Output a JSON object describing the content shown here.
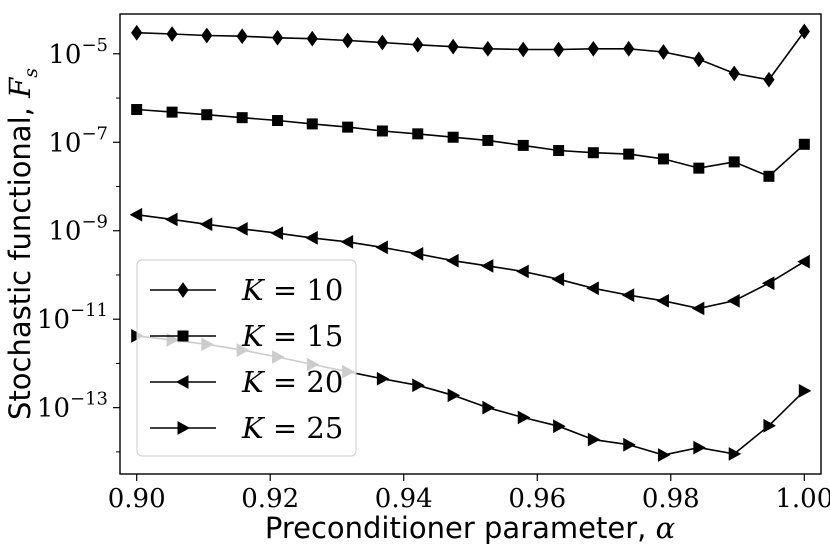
{
  "chart_data": {
    "type": "line",
    "xlabel": "Preconditioner parameter, α",
    "ylabel": "Stochastic functional, F_s",
    "ylabel_main": "Stochastic functional, ",
    "ylabel_symbol": "F",
    "ylabel_subscript": "s",
    "xlabel_main": "Preconditioner parameter, ",
    "xlabel_symbol": "α",
    "y_scale": "log",
    "xlim": [
      0.8975,
      1.0025
    ],
    "ylim_log10": [
      -14.5,
      -4.1
    ],
    "xticks": [
      0.9,
      0.92,
      0.94,
      0.96,
      0.98,
      1.0
    ],
    "xtick_labels": [
      "0.90",
      "0.92",
      "0.94",
      "0.96",
      "0.98",
      "1.00"
    ],
    "yticks_exponent": [
      -5,
      -7,
      -9,
      -11,
      -13
    ],
    "ytick_base": "10",
    "grid": false,
    "legend_position": "lower-left",
    "x": [
      0.9,
      0.9053,
      0.9105,
      0.9158,
      0.9211,
      0.9263,
      0.9316,
      0.9368,
      0.9421,
      0.9474,
      0.9526,
      0.9579,
      0.9632,
      0.9684,
      0.9737,
      0.9789,
      0.9842,
      0.9895,
      0.9947,
      1.0
    ],
    "series": [
      {
        "name": "K = 10",
        "legend_var": "K",
        "legend_eq": "= 10",
        "marker": "diamond",
        "values": [
          3e-05,
          2.8e-05,
          2.6e-05,
          2.5e-05,
          2.3e-05,
          2.2e-05,
          2e-05,
          1.8e-05,
          1.6e-05,
          1.45e-05,
          1.3e-05,
          1.25e-05,
          1.25e-05,
          1.3e-05,
          1.3e-05,
          1.1e-05,
          7.5e-06,
          3.6e-06,
          2.6e-06,
          3.2e-05
        ]
      },
      {
        "name": "K = 15",
        "legend_var": "K",
        "legend_eq": "= 15",
        "marker": "square",
        "values": [
          5.5e-07,
          4.8e-07,
          4.2e-07,
          3.6e-07,
          3.1e-07,
          2.6e-07,
          2.2e-07,
          1.8e-07,
          1.55e-07,
          1.3e-07,
          1.1e-07,
          8.5e-08,
          6.5e-08,
          5.8e-08,
          5.4e-08,
          4.2e-08,
          2.6e-08,
          3.6e-08,
          1.7e-08,
          9e-08
        ]
      },
      {
        "name": "K = 20",
        "legend_var": "K",
        "legend_eq": "= 20",
        "marker": "triangle-left",
        "values": [
          2.3e-09,
          1.8e-09,
          1.4e-09,
          1.1e-09,
          8.8e-10,
          6.9e-10,
          5.6e-10,
          4.2e-10,
          3e-10,
          2.1e-10,
          1.6e-10,
          1.2e-10,
          8e-11,
          5e-11,
          3.5e-11,
          2.6e-11,
          1.75e-11,
          2.6e-11,
          6.5e-11,
          2e-10
        ]
      },
      {
        "name": "K = 25",
        "legend_var": "K",
        "legend_eq": "= 25",
        "marker": "triangle-right",
        "values": [
          4.2e-12,
          3.4e-12,
          2.7e-12,
          2e-12,
          1.4e-12,
          9.5e-13,
          6.5e-13,
          4.5e-13,
          3.2e-13,
          1.9e-13,
          1e-13,
          6e-14,
          3.8e-14,
          1.9e-14,
          1.45e-14,
          8.5e-15,
          1.25e-14,
          9e-15,
          3.9e-14,
          2.4e-13
        ]
      }
    ]
  }
}
